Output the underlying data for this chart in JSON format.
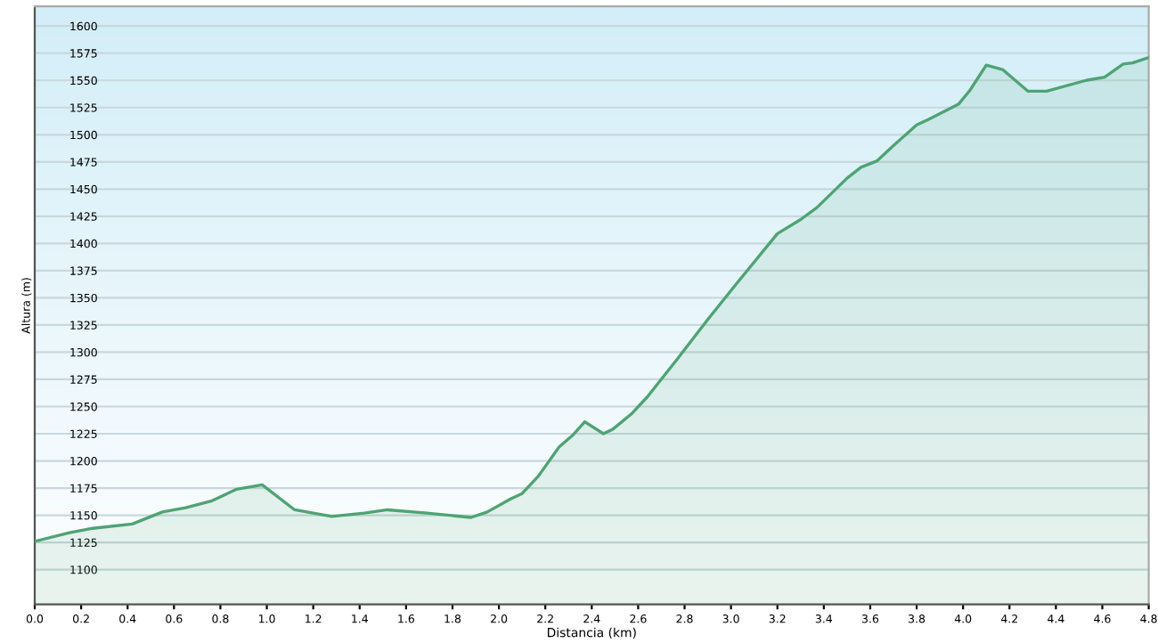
{
  "chart_data": {
    "type": "area",
    "xlabel": "Distancia (km)",
    "ylabel": "Altura (m)",
    "x": [
      0,
      0.15,
      0.25,
      0.42,
      0.55,
      0.65,
      0.76,
      0.87,
      0.98,
      1.12,
      1.28,
      1.42,
      1.52,
      1.69,
      1.88,
      1.95,
      2.05,
      2.1,
      2.17,
      2.26,
      2.32,
      2.37,
      2.45,
      2.49,
      2.57,
      2.64,
      2.77,
      2.9,
      3.02,
      3.2,
      3.3,
      3.37,
      3.5,
      3.56,
      3.63,
      3.7,
      3.8,
      3.85,
      3.98,
      4.03,
      4.1,
      4.17,
      4.28,
      4.36,
      4.53,
      4.61,
      4.69,
      4.73,
      4.8
    ],
    "series": [
      {
        "color": "#4fa374",
        "values": [
          1126,
          1134,
          1138,
          1142,
          1153,
          1157,
          1163,
          1174,
          1178,
          1155,
          1149,
          1152,
          1155,
          1152,
          1148,
          1153,
          1165,
          1170,
          1186,
          1213,
          1224,
          1236,
          1225,
          1229,
          1243,
          1259,
          1294,
          1330,
          1362,
          1409,
          1422,
          1433,
          1460,
          1470,
          1476,
          1490,
          1509,
          1514,
          1528,
          1541,
          1564,
          1560,
          1540,
          1540,
          1550,
          1553,
          1565,
          1566,
          1571
        ]
      }
    ],
    "xlim": [
      0,
      4.8
    ],
    "ylim": [
      1068,
      1618
    ],
    "xticks": [
      {
        "value": 0,
        "label": "0.0"
      },
      {
        "value": 0.2,
        "label": "0.2"
      },
      {
        "value": 0.4,
        "label": "0.4"
      },
      {
        "value": 0.6,
        "label": "0.6"
      },
      {
        "value": 0.8,
        "label": "0.8"
      },
      {
        "value": 1,
        "label": "1.0"
      },
      {
        "value": 1.2,
        "label": "1.2"
      },
      {
        "value": 1.4,
        "label": "1.4"
      },
      {
        "value": 1.6,
        "label": "1.6"
      },
      {
        "value": 1.8,
        "label": "1.8"
      },
      {
        "value": 2,
        "label": "2.0"
      },
      {
        "value": 2.2,
        "label": "2.2"
      },
      {
        "value": 2.4,
        "label": "2.4"
      },
      {
        "value": 2.6,
        "label": "2.6"
      },
      {
        "value": 2.8,
        "label": "2.8"
      },
      {
        "value": 3,
        "label": "3.0"
      },
      {
        "value": 3.2,
        "label": "3.2"
      },
      {
        "value": 3.4,
        "label": "3.4"
      },
      {
        "value": 3.6,
        "label": "3.6"
      },
      {
        "value": 3.8,
        "label": "3.8"
      },
      {
        "value": 4,
        "label": "4.0"
      },
      {
        "value": 4.2,
        "label": "4.2"
      },
      {
        "value": 4.4,
        "label": "4.4"
      },
      {
        "value": 4.6,
        "label": "4.6"
      },
      {
        "value": 4.8,
        "label": "4.8"
      }
    ],
    "yticks": [
      1100,
      1125,
      1150,
      1175,
      1200,
      1225,
      1250,
      1275,
      1300,
      1325,
      1350,
      1375,
      1400,
      1425,
      1450,
      1475,
      1500,
      1525,
      1550,
      1575,
      1600
    ],
    "grid": "y"
  }
}
